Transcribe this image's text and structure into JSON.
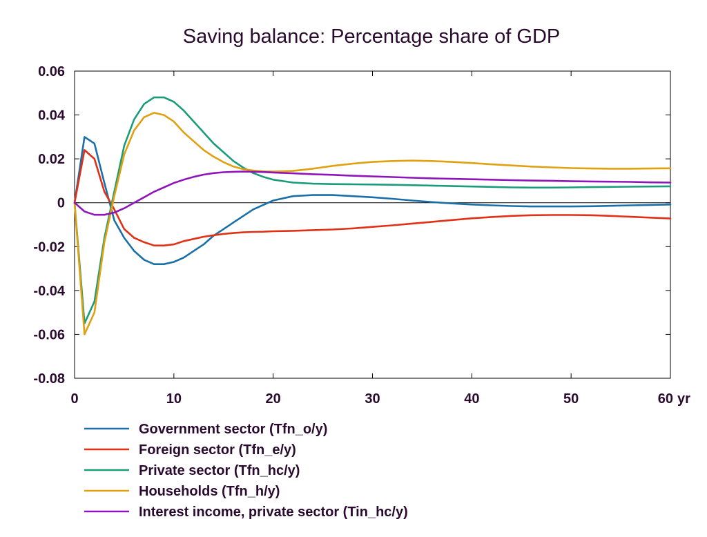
{
  "chart_data": {
    "type": "line",
    "title": "Saving balance: Percentage share of GDP",
    "xlabel": "",
    "ylabel": "",
    "x_unit_label": "yr",
    "xlim": [
      0,
      60
    ],
    "ylim": [
      -0.08,
      0.06
    ],
    "x_ticks": [
      0,
      10,
      20,
      30,
      40,
      50,
      60
    ],
    "x_tick_labels": [
      "0",
      "10",
      "20",
      "30",
      "40",
      "50",
      "60"
    ],
    "y_ticks": [
      -0.08,
      -0.06,
      -0.04,
      -0.02,
      0,
      0.02,
      0.04,
      0.06
    ],
    "y_tick_labels": [
      "-0.08",
      "-0.06",
      "-0.04",
      "-0.02",
      "0",
      "0.02",
      "0.04",
      "0.06"
    ],
    "grid": false,
    "zero_line": true,
    "legend_position": "bottom-left",
    "x": [
      0,
      1,
      2,
      3,
      4,
      5,
      6,
      7,
      8,
      9,
      10,
      11,
      12,
      13,
      14,
      15,
      16,
      17,
      18,
      19,
      20,
      22,
      24,
      26,
      28,
      30,
      32,
      34,
      36,
      38,
      40,
      42,
      44,
      46,
      48,
      50,
      52,
      54,
      56,
      58,
      60
    ],
    "series": [
      {
        "name": "Government sector (Tfn_o/y)",
        "color": "#1a6fa8",
        "values": [
          0,
          0.03,
          0.027,
          0.009,
          -0.008,
          -0.016,
          -0.022,
          -0.026,
          -0.028,
          -0.028,
          -0.027,
          -0.025,
          -0.022,
          -0.019,
          -0.015,
          -0.012,
          -0.009,
          -0.006,
          -0.003,
          -0.001,
          0.001,
          0.003,
          0.0035,
          0.0035,
          0.003,
          0.0025,
          0.0018,
          0.001,
          0.0003,
          -0.0003,
          -0.0008,
          -0.0012,
          -0.0015,
          -0.0017,
          -0.0017,
          -0.0017,
          -0.0016,
          -0.0014,
          -0.0012,
          -0.001,
          -0.0008
        ]
      },
      {
        "name": "Foreign sector (Tfn_e/y)",
        "color": "#e03015",
        "values": [
          0,
          0.024,
          0.02,
          0.005,
          -0.003,
          -0.012,
          -0.016,
          -0.018,
          -0.0195,
          -0.0195,
          -0.019,
          -0.0175,
          -0.0165,
          -0.0155,
          -0.0148,
          -0.0142,
          -0.0138,
          -0.0135,
          -0.0133,
          -0.0132,
          -0.013,
          -0.0128,
          -0.0125,
          -0.0122,
          -0.0117,
          -0.011,
          -0.0103,
          -0.0095,
          -0.0087,
          -0.0079,
          -0.0071,
          -0.0065,
          -0.006,
          -0.0057,
          -0.0056,
          -0.0056,
          -0.0057,
          -0.006,
          -0.0064,
          -0.0068,
          -0.0072
        ]
      },
      {
        "name": "Private sector (Tfn_hc/y)",
        "color": "#1a9c7a",
        "values": [
          0,
          -0.055,
          -0.045,
          -0.016,
          0.005,
          0.026,
          0.038,
          0.045,
          0.048,
          0.048,
          0.046,
          0.042,
          0.037,
          0.032,
          0.027,
          0.023,
          0.019,
          0.016,
          0.0135,
          0.0118,
          0.0105,
          0.0092,
          0.0087,
          0.0085,
          0.0084,
          0.0083,
          0.0082,
          0.008,
          0.0078,
          0.0076,
          0.0074,
          0.0072,
          0.007,
          0.0069,
          0.0069,
          0.007,
          0.0071,
          0.0072,
          0.0073,
          0.0074,
          0.0075
        ]
      },
      {
        "name": "Households (Tfn_h/y)",
        "color": "#e0a010",
        "values": [
          0,
          -0.06,
          -0.05,
          -0.018,
          0.003,
          0.022,
          0.033,
          0.039,
          0.041,
          0.04,
          0.037,
          0.032,
          0.028,
          0.024,
          0.021,
          0.0185,
          0.0165,
          0.0153,
          0.0147,
          0.0143,
          0.0142,
          0.0145,
          0.0155,
          0.0168,
          0.0178,
          0.0186,
          0.019,
          0.0192,
          0.019,
          0.0186,
          0.0181,
          0.0175,
          0.017,
          0.0165,
          0.0161,
          0.0158,
          0.0156,
          0.0155,
          0.0155,
          0.0156,
          0.0157
        ]
      },
      {
        "name": "Interest income, private sector (Tin_hc/y)",
        "color": "#8e16b8",
        "values": [
          0,
          -0.004,
          -0.0055,
          -0.0055,
          -0.0045,
          -0.0025,
          0,
          0.0025,
          0.005,
          0.007,
          0.009,
          0.0105,
          0.0118,
          0.0128,
          0.0135,
          0.0139,
          0.0141,
          0.0142,
          0.0141,
          0.014,
          0.0138,
          0.0134,
          0.013,
          0.0127,
          0.0123,
          0.012,
          0.0117,
          0.0114,
          0.0111,
          0.0109,
          0.0107,
          0.0105,
          0.0103,
          0.0101,
          0.01,
          0.0098,
          0.0097,
          0.0096,
          0.0095,
          0.0093,
          0.0092
        ]
      }
    ]
  }
}
